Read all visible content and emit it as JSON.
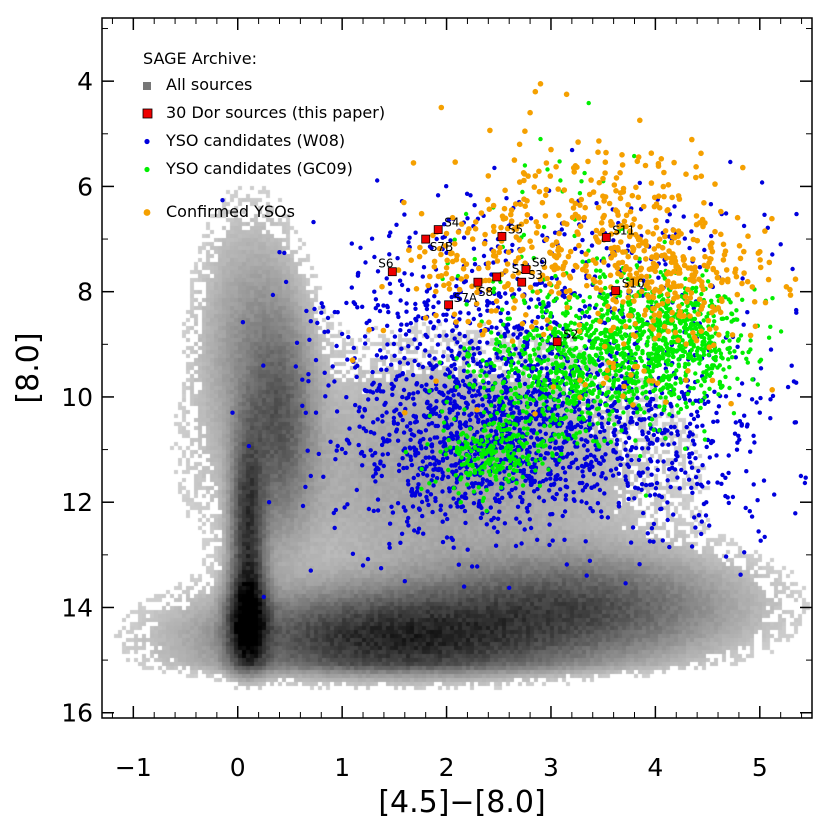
{
  "chart_data": {
    "type": "scatter",
    "title": "",
    "xlabel": "[4.5]−[8.0]",
    "ylabel": "[8.0]",
    "xlim": [
      -1.3,
      5.5
    ],
    "ylim": [
      16.1,
      2.8
    ],
    "y_inverted": true,
    "grid": false,
    "x_ticks": [
      -1,
      0,
      1,
      2,
      3,
      4,
      5
    ],
    "x_tick_labels": [
      "−1",
      "0",
      "1",
      "2",
      "3",
      "4",
      "5"
    ],
    "y_ticks": [
      4,
      6,
      8,
      10,
      12,
      14,
      16
    ],
    "y_tick_labels": [
      "4",
      "6",
      "8",
      "10",
      "12",
      "14",
      "16"
    ],
    "legend": {
      "placement": "top-left",
      "header": "SAGE Archive:",
      "entries": [
        {
          "label": "All sources",
          "color": "#777777",
          "marker": "square-small"
        },
        {
          "label": "30 Dor sources (this paper)",
          "color": "#ee0000",
          "marker": "square"
        },
        {
          "label": "YSO candidates (W08)",
          "color": "#0000dd",
          "marker": "dot"
        },
        {
          "label": "YSO candidates (GC09)",
          "color": "#00ee00",
          "marker": "dot"
        },
        {
          "label": "Confirmed YSOs",
          "color": "#f5a000",
          "marker": "dot"
        }
      ]
    },
    "series": [
      {
        "name": "All sources",
        "kind": "density",
        "color": "#000000",
        "description_components": [
          {
            "x": 0.1,
            "y": 14.3,
            "sx": 0.12,
            "sy": 0.6,
            "weight": 1.0
          },
          {
            "x": 0.1,
            "y": 12.5,
            "sx": 0.1,
            "sy": 1.2,
            "weight": 0.6
          },
          {
            "x": 1.5,
            "y": 14.6,
            "sx": 1.0,
            "sy": 0.55,
            "weight": 0.7
          },
          {
            "x": 3.2,
            "y": 14.0,
            "sx": 0.9,
            "sy": 0.6,
            "weight": 0.45
          },
          {
            "x": 0.4,
            "y": 10.5,
            "sx": 0.2,
            "sy": 1.3,
            "weight": 0.35
          },
          {
            "x": 0.1,
            "y": 9.0,
            "sx": 0.3,
            "sy": 1.5,
            "weight": 0.15
          },
          {
            "x": 2.0,
            "y": 11.5,
            "sx": 1.3,
            "sy": 1.5,
            "weight": 0.12
          }
        ]
      },
      {
        "name": "YSO candidates (W08)",
        "color": "#0000dd",
        "clusters": [
          {
            "x": 2.3,
            "y": 10.8,
            "sx": 0.65,
            "sy": 0.9,
            "n": 900
          },
          {
            "x": 3.3,
            "y": 10.6,
            "sx": 0.8,
            "sy": 0.9,
            "n": 450
          },
          {
            "x": 2.2,
            "y": 8.6,
            "sx": 0.8,
            "sy": 1.2,
            "n": 500
          },
          {
            "x": 4.2,
            "y": 10.8,
            "sx": 0.5,
            "sy": 1.0,
            "n": 200
          },
          {
            "x": 3.8,
            "y": 7.5,
            "sx": 0.7,
            "sy": 0.8,
            "n": 120
          }
        ],
        "outliers": [
          [
            -0.05,
            10.3
          ],
          [
            0.4,
            7.25
          ],
          [
            0.3,
            12.0
          ],
          [
            0.25,
            13.8
          ],
          [
            0.7,
            11.5
          ],
          [
            0.7,
            13.3
          ],
          [
            0.75,
            10.3
          ],
          [
            0.8,
            8.4
          ],
          [
            0.75,
            9.3
          ],
          [
            1.6,
            13.5
          ],
          [
            5.2,
            7.1
          ],
          [
            5.35,
            8.4
          ],
          [
            4.85,
            6.75
          ],
          [
            5.0,
            10.3
          ],
          [
            1.2,
            13.2
          ]
        ]
      },
      {
        "name": "YSO candidates (GC09)",
        "color": "#00ee00",
        "clusters": [
          {
            "x": 3.6,
            "y": 9.1,
            "sx": 0.55,
            "sy": 0.65,
            "n": 700
          },
          {
            "x": 4.2,
            "y": 8.9,
            "sx": 0.35,
            "sy": 0.55,
            "n": 350
          },
          {
            "x": 2.4,
            "y": 11.1,
            "sx": 0.25,
            "sy": 0.35,
            "n": 200
          },
          {
            "x": 2.9,
            "y": 10.0,
            "sx": 0.45,
            "sy": 0.6,
            "n": 250
          },
          {
            "x": 3.2,
            "y": 7.0,
            "sx": 0.5,
            "sy": 1.0,
            "n": 50
          }
        ],
        "outliers": [
          [
            2.9,
            5.1
          ],
          [
            2.75,
            5.6
          ],
          [
            3.5,
            5.9
          ]
        ]
      },
      {
        "name": "Confirmed YSOs",
        "color": "#f5a000",
        "clusters": [
          {
            "x": 4.2,
            "y": 7.8,
            "sx": 0.4,
            "sy": 0.55,
            "n": 220
          },
          {
            "x": 3.4,
            "y": 7.2,
            "sx": 0.75,
            "sy": 0.8,
            "n": 260
          },
          {
            "x": 2.3,
            "y": 7.4,
            "sx": 0.45,
            "sy": 0.6,
            "n": 80
          },
          {
            "x": 3.6,
            "y": 6.0,
            "sx": 0.5,
            "sy": 0.4,
            "n": 60
          },
          {
            "x": 3.8,
            "y": 9.2,
            "sx": 0.5,
            "sy": 0.5,
            "n": 40
          }
        ],
        "outliers": [
          [
            2.9,
            4.05
          ],
          [
            2.85,
            4.2
          ],
          [
            3.15,
            4.25
          ],
          [
            2.8,
            4.6
          ],
          [
            2.75,
            4.95
          ],
          [
            2.7,
            5.2
          ],
          [
            2.65,
            5.5
          ],
          [
            2.85,
            5.8
          ],
          [
            1.95,
            4.5
          ],
          [
            1.1,
            9.3
          ],
          [
            1.6,
            10.3
          ],
          [
            2.4,
            5.8
          ],
          [
            3.0,
            5.3
          ],
          [
            3.45,
            5.35
          ],
          [
            2.25,
            7.0
          ],
          [
            3.7,
            9.8
          ],
          [
            4.1,
            10.1
          ],
          [
            1.8,
            8.5
          ],
          [
            1.9,
            9.7
          ]
        ]
      },
      {
        "name": "30 Dor sources (this paper)",
        "color": "#ee0000",
        "points": [
          {
            "label": "S1",
            "x": 2.48,
            "y": 7.72
          },
          {
            "label": "S2",
            "x": 3.06,
            "y": 8.95
          },
          {
            "label": "S3",
            "x": 2.72,
            "y": 7.82
          },
          {
            "label": "S4",
            "x": 1.92,
            "y": 6.82
          },
          {
            "label": "S5",
            "x": 2.53,
            "y": 6.95
          },
          {
            "label": "S6",
            "x": 1.48,
            "y": 7.62
          },
          {
            "label": "S7A",
            "x": 2.02,
            "y": 8.25
          },
          {
            "label": "S7B",
            "x": 1.8,
            "y": 7.0
          },
          {
            "label": "S8",
            "x": 2.3,
            "y": 7.82
          },
          {
            "label": "S9",
            "x": 2.76,
            "y": 7.58
          },
          {
            "label": "S10",
            "x": 3.62,
            "y": 7.98
          },
          {
            "label": "S11",
            "x": 3.53,
            "y": 6.97
          }
        ]
      }
    ]
  }
}
